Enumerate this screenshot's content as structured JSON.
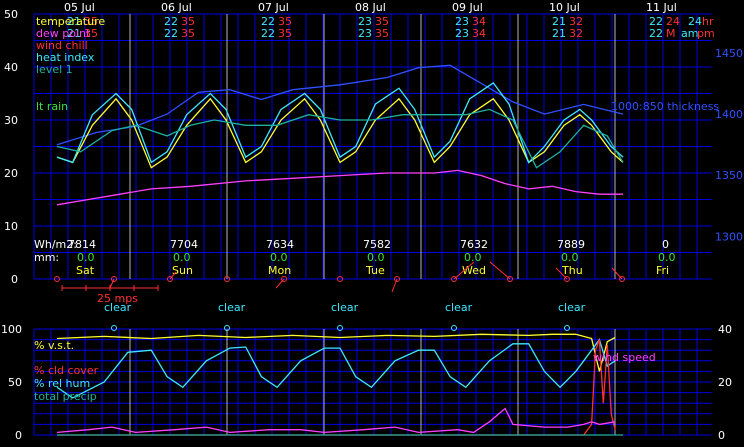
{
  "colors": {
    "background": "#000000",
    "grid": "#0000e0",
    "day_line": "#b4b4b4",
    "axis_text": "#ffffff",
    "right_axis_text": "#3050ff",
    "temperature": "#ffff30",
    "dew_point": "#ff40ff",
    "wind_chill": "#ff3030",
    "heat_index": "#40e8ff",
    "level1": "#20b0a0",
    "thickness": "#3050ff",
    "rain": "#40e040",
    "solar": "#ffffff",
    "vst": "#ffff30",
    "cloud_cover": "#ff3030",
    "rel_hum": "#40e8ff",
    "precip": "#20b0a0",
    "wind_speed": "#ff40ff",
    "day_name": "#ffff30"
  },
  "header": {
    "days": [
      {
        "date": "05 Jul",
        "top1": "21",
        "top2": "35",
        "bot1": "21",
        "bot2": "35"
      },
      {
        "date": "06 Jul",
        "top1": "22",
        "top2": "35",
        "bot1": "22",
        "bot2": "35"
      },
      {
        "date": "07 Jul",
        "top1": "22",
        "top2": "35",
        "bot1": "22",
        "bot2": "35"
      },
      {
        "date": "08 Jul",
        "top1": "23",
        "top2": "35",
        "bot1": "23",
        "bot2": "35"
      },
      {
        "date": "09 Jul",
        "top1": "23",
        "top2": "34",
        "bot1": "23",
        "bot2": "34"
      },
      {
        "date": "10 Jul",
        "top1": "21",
        "top2": "32",
        "bot1": "21",
        "bot2": "32"
      },
      {
        "date": "11 Jul",
        "top1": "22",
        "top2": "24",
        "bot1": "22",
        "bot2": "M"
      }
    ],
    "hr_label": "24",
    "hr_unit": "hr",
    "ampm_am": "am",
    "ampm_pm": "pm"
  },
  "legend_top": {
    "temperature": "temperature",
    "dew_point": "dew point",
    "wind_chill": "wind chill",
    "heat_index": "heat index",
    "level1": "level 1",
    "rain": "lt rain",
    "thickness": "1000:850 thickness"
  },
  "solar": {
    "prefix": "Wh/m2:",
    "values": [
      "7814",
      "7704",
      "7634",
      "7582",
      "7632",
      "7889",
      "0"
    ]
  },
  "rain_mm": {
    "prefix": "mm:",
    "values": [
      "0.0",
      "0.0",
      "0.0",
      "0.0",
      "0.0",
      "0.0",
      "0.0"
    ]
  },
  "day_names": [
    "Sat",
    "Sun",
    "Mon",
    "Tue",
    "Wed",
    "Thu",
    "Fri"
  ],
  "wind_scale_label": "25 mps",
  "sky": [
    "clear",
    "clear",
    "clear",
    "clear",
    "clear",
    "clear"
  ],
  "legend_bottom": {
    "vst": "% v.s.t.",
    "cloud_cover": "% cld cover",
    "rel_hum": "% rel hum",
    "precip": "total precip",
    "wind_speed": "wind speed"
  },
  "chart_data": [
    {
      "type": "line",
      "yticks": [
        0,
        10,
        20,
        30,
        40,
        50
      ],
      "ylim": [
        0,
        50
      ],
      "y2ticks": [
        1300,
        1350,
        1400,
        1450
      ],
      "y2lim": [
        1265,
        1482
      ],
      "grid": true,
      "x_unit": "hours from 05 Jul 00:00",
      "day_boundaries_h": [
        0,
        24,
        48,
        72,
        96,
        120,
        144
      ],
      "series": [
        {
          "name": "temperature",
          "points": [
            [
              0,
              23
            ],
            [
              4,
              22
            ],
            [
              9,
              29
            ],
            [
              15,
              34
            ],
            [
              19,
              30
            ],
            [
              24,
              21
            ],
            [
              28,
              23
            ],
            [
              33,
              29
            ],
            [
              39,
              34
            ],
            [
              43,
              30
            ],
            [
              48,
              22
            ],
            [
              52,
              24
            ],
            [
              57,
              30
            ],
            [
              63,
              34
            ],
            [
              67,
              30
            ],
            [
              72,
              22
            ],
            [
              76,
              24
            ],
            [
              81,
              30
            ],
            [
              87,
              34
            ],
            [
              91,
              30
            ],
            [
              96,
              22
            ],
            [
              100,
              25
            ],
            [
              105,
              31
            ],
            [
              111,
              34
            ],
            [
              115,
              30
            ],
            [
              120,
              22
            ],
            [
              124,
              24
            ],
            [
              129,
              29
            ],
            [
              133,
              31
            ],
            [
              136,
              29
            ],
            [
              141,
              24
            ],
            [
              144,
              22
            ]
          ]
        },
        {
          "name": "heat index",
          "points": [
            [
              0,
              23
            ],
            [
              4,
              22
            ],
            [
              9,
              31
            ],
            [
              15,
              35
            ],
            [
              19,
              32
            ],
            [
              24,
              22
            ],
            [
              28,
              24
            ],
            [
              33,
              31
            ],
            [
              39,
              35
            ],
            [
              43,
              32
            ],
            [
              48,
              23
            ],
            [
              52,
              25
            ],
            [
              57,
              32
            ],
            [
              63,
              35
            ],
            [
              67,
              32
            ],
            [
              72,
              23
            ],
            [
              76,
              25
            ],
            [
              81,
              33
            ],
            [
              87,
              36
            ],
            [
              91,
              32
            ],
            [
              96,
              23
            ],
            [
              100,
              26
            ],
            [
              105,
              34
            ],
            [
              111,
              37
            ],
            [
              115,
              33
            ],
            [
              120,
              22
            ],
            [
              124,
              25
            ],
            [
              129,
              30
            ],
            [
              133,
              32
            ],
            [
              136,
              30
            ],
            [
              141,
              25
            ],
            [
              144,
              23
            ]
          ]
        },
        {
          "name": "dew point",
          "points": [
            [
              0,
              14
            ],
            [
              8,
              15
            ],
            [
              16,
              16
            ],
            [
              24,
              17
            ],
            [
              34,
              17.5
            ],
            [
              48,
              18.5
            ],
            [
              60,
              19
            ],
            [
              72,
              19.5
            ],
            [
              84,
              20
            ],
            [
              96,
              20
            ],
            [
              102,
              20.5
            ],
            [
              108,
              19.5
            ],
            [
              114,
              18
            ],
            [
              120,
              17
            ],
            [
              126,
              17.5
            ],
            [
              132,
              16.5
            ],
            [
              138,
              16
            ],
            [
              144,
              16
            ]
          ]
        },
        {
          "name": "level 1",
          "points": [
            [
              0,
              25
            ],
            [
              6,
              24
            ],
            [
              14,
              28
            ],
            [
              20,
              29
            ],
            [
              28,
              27
            ],
            [
              34,
              29
            ],
            [
              40,
              30
            ],
            [
              48,
              29
            ],
            [
              56,
              29
            ],
            [
              64,
              31
            ],
            [
              72,
              30
            ],
            [
              80,
              30
            ],
            [
              88,
              31
            ],
            [
              96,
              31
            ],
            [
              104,
              31
            ],
            [
              110,
              32
            ],
            [
              116,
              30
            ],
            [
              122,
              21
            ],
            [
              128,
              24
            ],
            [
              134,
              29
            ],
            [
              140,
              27
            ],
            [
              144,
              22
            ]
          ]
        }
      ],
      "series_y2": [
        {
          "name": "1000:850 thickness",
          "points": [
            [
              0,
              1375
            ],
            [
              10,
              1385
            ],
            [
              20,
              1390
            ],
            [
              28,
              1400
            ],
            [
              36,
              1418
            ],
            [
              44,
              1420
            ],
            [
              52,
              1412
            ],
            [
              60,
              1420
            ],
            [
              72,
              1424
            ],
            [
              84,
              1430
            ],
            [
              92,
              1438
            ],
            [
              100,
              1440
            ],
            [
              108,
              1425
            ],
            [
              116,
              1410
            ],
            [
              124,
              1400
            ],
            [
              134,
              1408
            ],
            [
              144,
              1400
            ]
          ]
        }
      ]
    },
    {
      "type": "line",
      "yticks": [
        0,
        50,
        100
      ],
      "ylim": [
        0,
        100
      ],
      "y2ticks": [
        0,
        20,
        40
      ],
      "y2lim": [
        0,
        40
      ],
      "grid": true,
      "x_unit": "hours from 05 Jul 00:00",
      "series": [
        {
          "name": "% v.s.t.",
          "points": [
            [
              0,
              91
            ],
            [
              12,
              93
            ],
            [
              24,
              91
            ],
            [
              36,
              94
            ],
            [
              48,
              92
            ],
            [
              60,
              94
            ],
            [
              72,
              92
            ],
            [
              84,
              94
            ],
            [
              96,
              93
            ],
            [
              108,
              95
            ],
            [
              120,
              94
            ],
            [
              126,
              95
            ],
            [
              132,
              95
            ],
            [
              136,
              91
            ],
            [
              138,
              60
            ],
            [
              140,
              88
            ],
            [
              142,
              92
            ]
          ]
        },
        {
          "name": "% rel hum",
          "points": [
            [
              0,
              45
            ],
            [
              4,
              35
            ],
            [
              12,
              50
            ],
            [
              18,
              78
            ],
            [
              24,
              80
            ],
            [
              28,
              55
            ],
            [
              32,
              45
            ],
            [
              38,
              70
            ],
            [
              44,
              82
            ],
            [
              48,
              83
            ],
            [
              52,
              55
            ],
            [
              56,
              45
            ],
            [
              62,
              70
            ],
            [
              68,
              82
            ],
            [
              72,
              82
            ],
            [
              76,
              55
            ],
            [
              80,
              45
            ],
            [
              86,
              70
            ],
            [
              92,
              80
            ],
            [
              96,
              80
            ],
            [
              100,
              55
            ],
            [
              104,
              45
            ],
            [
              110,
              70
            ],
            [
              116,
              86
            ],
            [
              120,
              86
            ],
            [
              124,
              60
            ],
            [
              128,
              45
            ],
            [
              132,
              60
            ],
            [
              136,
              80
            ],
            [
              138,
              90
            ],
            [
              140,
              65
            ],
            [
              142,
              70
            ]
          ]
        },
        {
          "name": "% cld cover",
          "points": [
            [
              0,
              0
            ],
            [
              134,
              0
            ],
            [
              136,
              10
            ],
            [
              137,
              80
            ],
            [
              138,
              90
            ],
            [
              139,
              30
            ],
            [
              140,
              85
            ],
            [
              141,
              20
            ],
            [
              142,
              5
            ]
          ]
        },
        {
          "name": "total precip",
          "points": [
            [
              0,
              0
            ],
            [
              144,
              0
            ]
          ]
        }
      ],
      "series_y2": [
        {
          "name": "wind speed",
          "points": [
            [
              0,
              1
            ],
            [
              8,
              2
            ],
            [
              14,
              3
            ],
            [
              20,
              1
            ],
            [
              30,
              2
            ],
            [
              38,
              3
            ],
            [
              44,
              1
            ],
            [
              54,
              2
            ],
            [
              62,
              2
            ],
            [
              68,
              1
            ],
            [
              78,
              2
            ],
            [
              86,
              3
            ],
            [
              92,
              1
            ],
            [
              102,
              2
            ],
            [
              106,
              1
            ],
            [
              110,
              5
            ],
            [
              114,
              10
            ],
            [
              116,
              4
            ],
            [
              124,
              3
            ],
            [
              130,
              3
            ],
            [
              134,
              4
            ],
            [
              136,
              5
            ],
            [
              138,
              4
            ],
            [
              142,
              5
            ]
          ]
        }
      ]
    }
  ]
}
